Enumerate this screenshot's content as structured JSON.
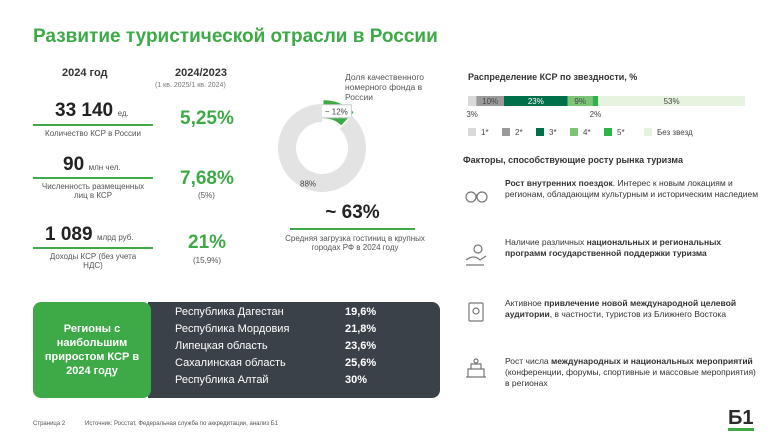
{
  "title": "Развитие туристической отрасли в России",
  "kpi": {
    "col1_header": "2024 год",
    "col2_header": "2024/2023",
    "col2_subheader": "(1 кв. 2025/1 кв. 2024)",
    "items": [
      {
        "value": "33 140",
        "unit": "ед.",
        "label": "Количество КСР в России",
        "change": "5,25%"
      },
      {
        "value": "90",
        "unit": "млн чел.",
        "label": "Численность размещенных лиц в КСР",
        "change": "7,68%",
        "change_note": "(5%)"
      },
      {
        "value": "1 089",
        "unit": "млрд руб.",
        "label": "Доходы КСР (без учета НДС)",
        "change": "21%",
        "change_note": "(15,9%)"
      }
    ]
  },
  "quality_share": {
    "type": "pie",
    "label": "Доля качественного номерного фонда в России",
    "values": [
      12,
      88
    ],
    "value_labels": [
      "~ 12%",
      "88%"
    ],
    "colors": [
      "#3daa47",
      "#e3e3e3"
    ]
  },
  "occupancy": {
    "value": "~ 63%",
    "label": "Средняя загрузка гостиниц в крупных городах РФ в 2024 году"
  },
  "stars": {
    "type": "stacked_bar",
    "title": "Распределение КСР по звездности, %",
    "categories": [
      "1*",
      "2*",
      "3*",
      "4*",
      "5*",
      "Без звезд"
    ],
    "values": [
      3,
      10,
      23,
      9,
      2,
      53
    ],
    "value_labels": [
      "3%",
      "10%",
      "23%",
      "9%",
      "2%",
      "53%"
    ],
    "colors": [
      "#d9d9d9",
      "#9a9a9a",
      "#00704a",
      "#7cc576",
      "#2db34a",
      "#e6f4df"
    ]
  },
  "factors": {
    "title": "Факторы, способствующие росту рынка туризма",
    "items": [
      [
        {
          "text": "Рост внутренних поездок",
          "bold": true
        },
        {
          "text": ". Интерес к новым локациям и регионам, обладающим культурным и историческим наследием",
          "bold": false
        }
      ],
      [
        {
          "text": "Наличие различных ",
          "bold": false
        },
        {
          "text": "национальных и региональных программ государственной поддержки туризма",
          "bold": true
        }
      ],
      [
        {
          "text": "Активное ",
          "bold": false
        },
        {
          "text": "привлечение новой международной целевой аудитории",
          "bold": true
        },
        {
          "text": ", в частности, туристов из Ближнего Востока",
          "bold": false
        }
      ],
      [
        {
          "text": "Рост числа ",
          "bold": false
        },
        {
          "text": "международных и национальных мероприятий",
          "bold": true
        },
        {
          "text": " (конференции, форумы, спортивные и массовые мероприятия) в регионах",
          "bold": false
        }
      ]
    ]
  },
  "regions": {
    "label": "Регионы с наибольшим приростом КСР в 2024 году",
    "rows": [
      [
        "Республика Дагестан",
        "19,6%"
      ],
      [
        "Республика Мордовия",
        "21,8%"
      ],
      [
        "Липецкая область",
        "23,6%"
      ],
      [
        "Сахалинская область",
        "25,6%"
      ],
      [
        "Республика Алтай",
        "30%"
      ]
    ]
  },
  "footer": {
    "page": "Страница 2",
    "source": "Источник: Росстат, Федеральная служба по аккредитации, анализ Б1",
    "logo": "Б1"
  }
}
